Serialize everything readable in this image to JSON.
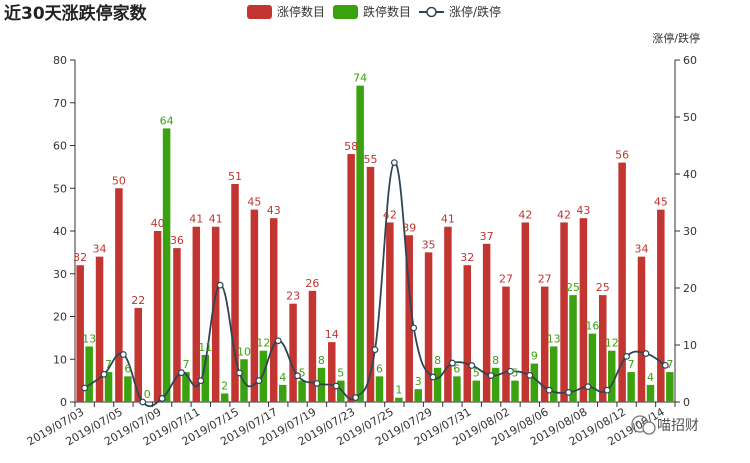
{
  "chart_data": {
    "type": "bar",
    "title": "近30天涨跌停家数",
    "categories": [
      "2019/07/03",
      "2019/07/04",
      "2019/07/05",
      "2019/07/08",
      "2019/07/09",
      "2019/07/10",
      "2019/07/11",
      "2019/07/12",
      "2019/07/15",
      "2019/07/16",
      "2019/07/17",
      "2019/07/18",
      "2019/07/19",
      "2019/07/22",
      "2019/07/23",
      "2019/07/24",
      "2019/07/25",
      "2019/07/26",
      "2019/07/29",
      "2019/07/30",
      "2019/07/31",
      "2019/08/01",
      "2019/08/02",
      "2019/08/05",
      "2019/08/06",
      "2019/08/07",
      "2019/08/08",
      "2019/08/09",
      "2019/08/12",
      "2019/08/13",
      "2019/08/14"
    ],
    "x_tick_labels": [
      "2019/07/03",
      "2019/07/05",
      "2019/07/09",
      "2019/07/11",
      "2019/07/15",
      "2019/07/17",
      "2019/07/19",
      "2019/07/23",
      "2019/07/25",
      "2019/07/29",
      "2019/07/31",
      "2019/08/02",
      "2019/08/06",
      "2019/08/08",
      "2019/08/12",
      "2019/08/14"
    ],
    "series": [
      {
        "name": "涨停数目",
        "kind": "bar",
        "color": "#c23531",
        "values": [
          32,
          34,
          50,
          22,
          40,
          36,
          41,
          41,
          51,
          45,
          43,
          23,
          26,
          14,
          58,
          55,
          42,
          39,
          35,
          41,
          32,
          37,
          27,
          42,
          27,
          42,
          43,
          25,
          56,
          34,
          45
        ]
      },
      {
        "name": "跌停数目",
        "kind": "bar",
        "color": "#3ba20f",
        "values": [
          13,
          7,
          6,
          0,
          64,
          7,
          11,
          2,
          10,
          12,
          4,
          5,
          8,
          5,
          74,
          6,
          1,
          3,
          8,
          6,
          5,
          8,
          5,
          9,
          13,
          25,
          16,
          12,
          7,
          4,
          7
        ]
      },
      {
        "name": "涨停/跌停",
        "kind": "line",
        "axis": "right",
        "color": "#2f4554",
        "values": [
          2.46,
          4.86,
          8.33,
          0,
          0.63,
          5.14,
          3.73,
          20.5,
          5.1,
          3.75,
          10.75,
          4.6,
          3.25,
          2.8,
          0.78,
          9.17,
          42,
          13,
          4.38,
          6.83,
          6.4,
          4.63,
          5.4,
          4.67,
          2.08,
          1.68,
          2.69,
          2.08,
          8,
          8.5,
          6.43
        ]
      }
    ],
    "y_left": {
      "min": 0,
      "max": 80,
      "ticks": [
        0,
        10,
        20,
        30,
        40,
        50,
        60,
        70,
        80
      ]
    },
    "y_right": {
      "name": "涨停/跌停",
      "min": 0,
      "max": 60,
      "ticks": [
        0,
        10,
        20,
        30,
        40,
        50,
        60
      ]
    },
    "legend": {
      "position": "top",
      "items": [
        "涨停数目",
        "跌停数目",
        "涨停/跌停"
      ]
    },
    "grid": false
  },
  "watermark": "喵招财"
}
